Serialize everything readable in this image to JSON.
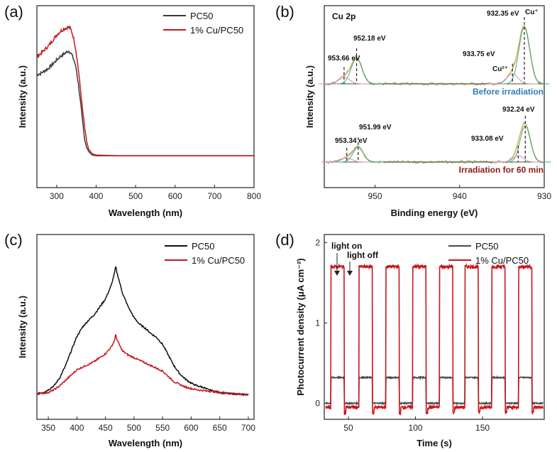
{
  "panels": {
    "a": {
      "letter": "(a)"
    },
    "b": {
      "letter": "(b)"
    },
    "c": {
      "letter": "(c)"
    },
    "d": {
      "letter": "(d)"
    }
  },
  "chart_data": [
    {
      "panel": "(a)",
      "type": "line",
      "title": "",
      "xlabel": "Wavelength (nm)",
      "ylabel": "Intensity (a.u.)",
      "xlim": [
        250,
        800
      ],
      "ylim": [
        0,
        1.1
      ],
      "xticks": [
        300,
        400,
        500,
        600,
        700,
        800
      ],
      "legend": "top-right",
      "series": [
        {
          "name": "PC50",
          "color": "#3a3a3a",
          "x": [
            250,
            260,
            270,
            280,
            290,
            300,
            310,
            320,
            330,
            335,
            340,
            345,
            350,
            355,
            360,
            365,
            370,
            375,
            380,
            390,
            400,
            450,
            500,
            600,
            700,
            800
          ],
          "y": [
            0.62,
            0.63,
            0.65,
            0.67,
            0.7,
            0.73,
            0.76,
            0.78,
            0.8,
            0.79,
            0.76,
            0.72,
            0.66,
            0.55,
            0.42,
            0.28,
            0.15,
            0.08,
            0.04,
            0.01,
            0.005,
            0.005,
            0.005,
            0.005,
            0.005,
            0.005
          ]
        },
        {
          "name": "1% Cu/PC50",
          "color": "#c8161d",
          "x": [
            250,
            260,
            270,
            280,
            290,
            300,
            310,
            320,
            330,
            335,
            340,
            345,
            350,
            355,
            360,
            365,
            370,
            375,
            380,
            390,
            400,
            450,
            500,
            600,
            700,
            800
          ],
          "y": [
            0.76,
            0.78,
            0.81,
            0.84,
            0.88,
            0.92,
            0.95,
            0.97,
            0.98,
            0.97,
            0.93,
            0.87,
            0.78,
            0.66,
            0.52,
            0.37,
            0.24,
            0.13,
            0.06,
            0.02,
            0.01,
            0.005,
            0.005,
            0.005,
            0.005,
            0.005
          ]
        }
      ]
    },
    {
      "panel": "(b)",
      "type": "line",
      "title": "Cu 2p",
      "xlabel": "Binding energy (eV)",
      "ylabel": "Intensity (a.u.)",
      "xlim": [
        956,
        930
      ],
      "xticks": [
        950,
        940,
        930
      ],
      "spectra": [
        {
          "name": "Before irradiation",
          "label_color": "#2a7fb8",
          "peaks": [
            {
              "center": 932.35,
              "label": "932.35 eV",
              "height": 1.0
            },
            {
              "center": 933.75,
              "label": "933.75 eV",
              "height": 0.18
            },
            {
              "center": 952.18,
              "label": "952.18 eV",
              "height": 0.45
            },
            {
              "center": 953.66,
              "label": "953.66 eV",
              "height": 0.12
            }
          ],
          "species": [
            "Cu⁺",
            "Cu²⁺"
          ]
        },
        {
          "name": "Irradiation for 60 min",
          "label_color": "#8b1a1a",
          "peaks": [
            {
              "center": 932.24,
              "label": "932.24 eV",
              "height": 0.85
            },
            {
              "center": 933.08,
              "label": "933.08 eV",
              "height": 0.15
            },
            {
              "center": 951.99,
              "label": "951.99 eV",
              "height": 0.35
            },
            {
              "center": 953.34,
              "label": "953.34 eV",
              "height": 0.1
            }
          ]
        }
      ]
    },
    {
      "panel": "(c)",
      "type": "line",
      "xlabel": "Wavelength (nm)",
      "ylabel": "Intensity (a.u.)",
      "xlim": [
        330,
        700
      ],
      "xticks": [
        350,
        400,
        450,
        500,
        550,
        600,
        650,
        700
      ],
      "legend": "top-right",
      "series": [
        {
          "name": "PC50",
          "color": "#111111",
          "x": [
            330,
            340,
            350,
            360,
            370,
            380,
            390,
            400,
            410,
            420,
            430,
            440,
            450,
            460,
            465,
            468,
            470,
            475,
            480,
            490,
            500,
            510,
            520,
            530,
            540,
            550,
            560,
            570,
            580,
            590,
            600,
            610,
            620,
            630,
            640,
            650,
            660,
            670,
            680,
            690,
            700
          ],
          "y": [
            0.01,
            0.02,
            0.04,
            0.07,
            0.13,
            0.22,
            0.33,
            0.44,
            0.51,
            0.56,
            0.6,
            0.66,
            0.72,
            0.82,
            0.9,
            0.96,
            0.92,
            0.84,
            0.76,
            0.66,
            0.58,
            0.53,
            0.5,
            0.46,
            0.43,
            0.38,
            0.3,
            0.22,
            0.16,
            0.12,
            0.09,
            0.07,
            0.06,
            0.04,
            0.03,
            0.02,
            0.015,
            0.01,
            0.008,
            0.005,
            0.005
          ]
        },
        {
          "name": "1% Cu/PC50",
          "color": "#c8161d",
          "x": [
            330,
            340,
            350,
            360,
            370,
            380,
            390,
            400,
            410,
            420,
            430,
            440,
            450,
            460,
            465,
            468,
            470,
            475,
            480,
            490,
            500,
            510,
            520,
            530,
            540,
            550,
            560,
            570,
            580,
            590,
            600,
            610,
            620,
            630,
            640,
            650,
            660,
            670,
            680,
            690,
            700
          ],
          "y": [
            0.01,
            0.015,
            0.02,
            0.04,
            0.07,
            0.11,
            0.15,
            0.19,
            0.21,
            0.23,
            0.25,
            0.28,
            0.31,
            0.36,
            0.4,
            0.45,
            0.42,
            0.37,
            0.33,
            0.3,
            0.28,
            0.26,
            0.24,
            0.22,
            0.2,
            0.18,
            0.14,
            0.1,
            0.08,
            0.06,
            0.05,
            0.04,
            0.035,
            0.03,
            0.025,
            0.02,
            0.015,
            0.01,
            0.008,
            0.005,
            0.005
          ]
        }
      ]
    },
    {
      "panel": "(d)",
      "type": "line",
      "xlabel": "Time (s)",
      "ylabel": "Photocurrent density (μA cm⁻²)",
      "xlim": [
        32,
        196
      ],
      "ylim": [
        -0.2,
        2.1
      ],
      "xticks": [
        50,
        100,
        150
      ],
      "yticks": [
        0,
        1,
        2
      ],
      "legend": "top-right",
      "annotations": [
        "light on",
        "light off"
      ],
      "cycles_on_times_s": [
        37,
        58,
        78,
        98,
        118,
        137,
        157,
        177
      ],
      "on_duration_s": 10,
      "series": [
        {
          "name": "PC50",
          "color": "#4a4a4a",
          "on_value": 0.32,
          "off_value": 0.0
        },
        {
          "name": "1% Cu/PC50",
          "color": "#c8161d",
          "on_value": 1.7,
          "off_value": -0.05
        }
      ]
    }
  ]
}
